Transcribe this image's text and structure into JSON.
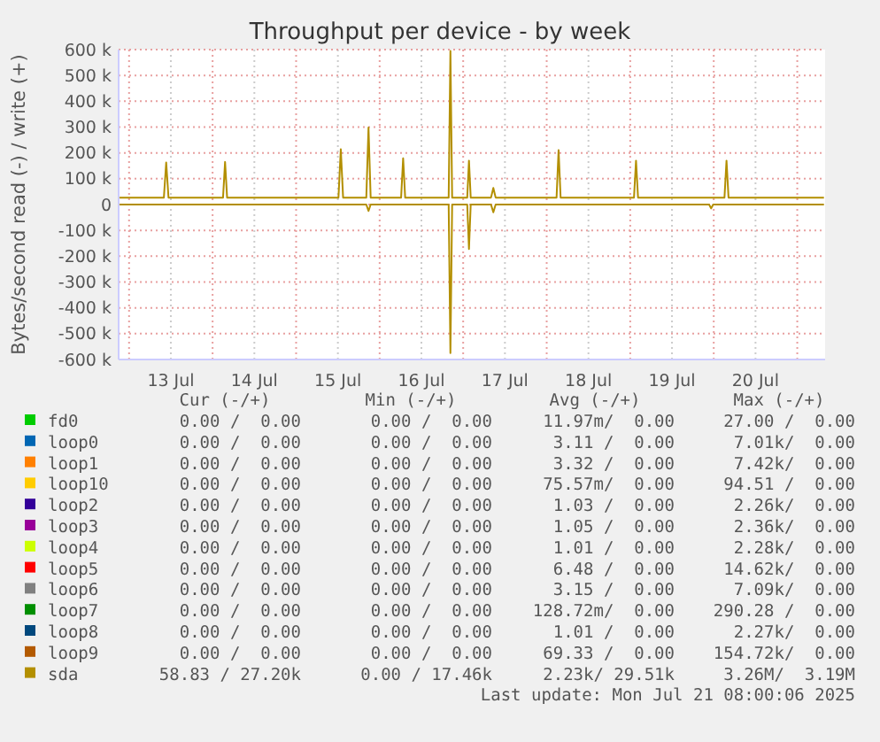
{
  "chart_data": {
    "type": "line",
    "title": "Throughput per device - by week",
    "ylabel": "Bytes/second read (-) / write (+)",
    "xlim": [
      "2025-07-12T21:00",
      "2025-07-21T08:00"
    ],
    "xticks": [
      {
        "value": "2025-07-13T00:00",
        "label": null
      },
      {
        "value": "2025-07-13T12:00",
        "label": "13 Jul"
      },
      {
        "value": "2025-07-14T00:00",
        "label": null
      },
      {
        "value": "2025-07-14T12:00",
        "label": "14 Jul"
      },
      {
        "value": "2025-07-15T00:00",
        "label": null
      },
      {
        "value": "2025-07-15T12:00",
        "label": "15 Jul"
      },
      {
        "value": "2025-07-16T00:00",
        "label": null
      },
      {
        "value": "2025-07-16T12:00",
        "label": "16 Jul"
      },
      {
        "value": "2025-07-17T00:00",
        "label": null
      },
      {
        "value": "2025-07-17T12:00",
        "label": "17 Jul"
      },
      {
        "value": "2025-07-18T00:00",
        "label": null
      },
      {
        "value": "2025-07-18T12:00",
        "label": "18 Jul"
      },
      {
        "value": "2025-07-19T00:00",
        "label": null
      },
      {
        "value": "2025-07-19T12:00",
        "label": "19 Jul"
      },
      {
        "value": "2025-07-20T00:00",
        "label": null
      },
      {
        "value": "2025-07-20T12:00",
        "label": "20 Jul"
      },
      {
        "value": "2025-07-21T00:00",
        "label": null
      }
    ],
    "ylim": [
      -600000,
      600000
    ],
    "yticks": [
      {
        "value": -600000,
        "label": "-600 k"
      },
      {
        "value": -500000,
        "label": "-500 k"
      },
      {
        "value": -400000,
        "label": "-400 k"
      },
      {
        "value": -300000,
        "label": "-300 k"
      },
      {
        "value": -200000,
        "label": "-200 k"
      },
      {
        "value": -100000,
        "label": "-100 k"
      },
      0,
      {
        "value": 100000,
        "label": "100 k"
      },
      {
        "value": 200000,
        "label": "200 k"
      },
      {
        "value": 300000,
        "label": "300 k"
      },
      {
        "value": 400000,
        "label": "400 k"
      },
      {
        "value": 500000,
        "label": "500 k"
      },
      {
        "value": 600000,
        "label": "600 k"
      }
    ],
    "grid": true,
    "legend": "bottom",
    "marker": "none",
    "line_style": "solid",
    "series": [
      {
        "name": "fd0",
        "color": "#00cc00"
      },
      {
        "name": "loop0",
        "color": "#0066b3"
      },
      {
        "name": "loop1",
        "color": "#ff8000"
      },
      {
        "name": "loop10",
        "color": "#ffcc00"
      },
      {
        "name": "loop2",
        "color": "#330099"
      },
      {
        "name": "loop3",
        "color": "#990099"
      },
      {
        "name": "loop4",
        "color": "#ccff00"
      },
      {
        "name": "loop5",
        "color": "#ff0000"
      },
      {
        "name": "loop6",
        "color": "#808080"
      },
      {
        "name": "loop7",
        "color": "#008f00"
      },
      {
        "name": "loop8",
        "color": "#00487d"
      },
      {
        "name": "loop9",
        "color": "#b35a00"
      },
      {
        "name": "sda",
        "color": "#b38f00",
        "x": [
          "2025-07-12T21:00",
          "2025-07-13T10:00",
          "2025-07-13T10:40",
          "2025-07-13T11:20",
          "2025-07-14T03:00",
          "2025-07-14T03:35",
          "2025-07-14T04:10",
          "2025-07-15T12:10",
          "2025-07-15T12:50",
          "2025-07-15T13:30",
          "2025-07-15T20:10",
          "2025-07-15T20:48",
          "2025-07-15T21:25",
          "2025-07-16T06:10",
          "2025-07-16T06:45",
          "2025-07-16T07:20",
          "2025-07-16T19:50",
          "2025-07-16T20:20",
          "2025-07-16T20:50",
          "2025-07-17T01:10",
          "2025-07-17T01:40",
          "2025-07-17T02:10",
          "2025-07-17T08:00",
          "2025-07-17T08:40",
          "2025-07-17T09:20",
          "2025-07-18T02:50",
          "2025-07-18T03:25",
          "2025-07-18T04:00",
          "2025-07-19T01:05",
          "2025-07-19T01:40",
          "2025-07-19T02:15",
          "2025-07-20T03:05",
          "2025-07-20T03:40",
          "2025-07-20T04:15",
          "2025-07-21T07:40"
        ],
        "values": [
          27000,
          27000,
          163000,
          27000,
          27000,
          165000,
          27000,
          27000,
          214000,
          27000,
          27000,
          298000,
          27000,
          27000,
          179000,
          27000,
          27000,
          595000,
          27000,
          27000,
          170000,
          27000,
          27000,
          64000,
          27000,
          27000,
          211000,
          27000,
          27000,
          170000,
          27000,
          27000,
          170000,
          27000,
          27000
        ]
      },
      {
        "color": "#b38f00",
        "x": [
          "2025-07-12T21:00",
          "2025-07-15T20:10",
          "2025-07-15T20:48",
          "2025-07-15T21:25",
          "2025-07-16T19:50",
          "2025-07-16T20:20",
          "2025-07-16T20:50",
          "2025-07-17T01:10",
          "2025-07-17T01:40",
          "2025-07-17T02:10",
          "2025-07-17T08:00",
          "2025-07-17T08:40",
          "2025-07-17T09:20",
          "2025-07-19T22:40",
          "2025-07-19T23:15",
          "2025-07-19T23:50",
          "2025-07-21T07:40"
        ],
        "values": [
          0,
          0,
          -25000,
          0,
          0,
          -575000,
          0,
          0,
          -172000,
          0,
          0,
          -30000,
          0,
          0,
          -15000,
          0,
          0
        ]
      }
    ],
    "annotations": [
      "Cur (-/+)",
      "Min (-/+)",
      "Avg (-/+)",
      "Max (-/+)",
      "0.00 /  0.00",
      "0.00 /  0.00",
      "11.97m/  0.00",
      "27.00 /  0.00",
      "0.00 /  0.00",
      "0.00 /  0.00",
      "3.11 /  0.00",
      "7.01k/  0.00",
      "0.00 /  0.00",
      "0.00 /  0.00",
      "3.32 /  0.00",
      "7.42k/  0.00",
      "0.00 /  0.00",
      "0.00 /  0.00",
      "75.57m/  0.00",
      "94.51 /  0.00",
      "0.00 /  0.00",
      "0.00 /  0.00",
      "1.03 /  0.00",
      "2.26k/  0.00",
      "0.00 /  0.00",
      "0.00 /  0.00",
      "1.05 /  0.00",
      "2.36k/  0.00",
      "0.00 /  0.00",
      "0.00 /  0.00",
      "1.01 /  0.00",
      "2.28k/  0.00",
      "0.00 /  0.00",
      "0.00 /  0.00",
      "6.48 /  0.00",
      "14.62k/  0.00",
      "0.00 /  0.00",
      "0.00 /  0.00",
      "3.15 /  0.00",
      "7.09k/  0.00",
      "0.00 /  0.00",
      "0.00 /  0.00",
      "128.72m/  0.00",
      "290.28 /  0.00",
      "0.00 /  0.00",
      "0.00 /  0.00",
      "1.01 /  0.00",
      "2.27k/  0.00",
      "0.00 /  0.00",
      "0.00 /  0.00",
      "69.33 /  0.00",
      "154.72k/  0.00",
      "58.83 / 27.20k",
      "0.00 / 17.46k",
      "2.23k/ 29.51k",
      "3.26M/  3.19M",
      "Last update: Mon Jul 21 08:00:06 2025"
    ]
  }
}
